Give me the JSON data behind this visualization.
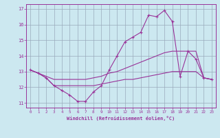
{
  "xlabel": "Windchill (Refroidissement éolien,°C)",
  "background_color": "#cce8f0",
  "line_color": "#993399",
  "grid_color": "#99aabb",
  "hours": [
    0,
    1,
    2,
    3,
    4,
    5,
    6,
    7,
    8,
    9,
    10,
    11,
    12,
    13,
    14,
    15,
    16,
    17,
    18,
    19,
    20,
    21,
    22,
    23
  ],
  "series1": [
    13.1,
    12.9,
    12.6,
    12.1,
    11.8,
    11.5,
    11.1,
    11.1,
    11.7,
    12.1,
    13.1,
    14.0,
    14.9,
    15.2,
    15.5,
    16.6,
    16.5,
    16.9,
    16.2,
    12.7,
    14.3,
    13.8,
    12.6,
    12.5
  ],
  "series2": [
    13.1,
    12.9,
    12.7,
    12.5,
    12.5,
    12.5,
    12.5,
    12.5,
    12.6,
    12.7,
    12.9,
    13.0,
    13.2,
    13.4,
    13.6,
    13.8,
    14.0,
    14.2,
    14.3,
    14.3,
    14.3,
    14.3,
    12.6,
    12.5
  ],
  "series3": [
    13.1,
    12.9,
    12.6,
    12.1,
    12.1,
    12.1,
    12.1,
    12.1,
    12.1,
    12.2,
    12.3,
    12.4,
    12.5,
    12.5,
    12.6,
    12.7,
    12.8,
    12.9,
    13.0,
    13.0,
    13.0,
    13.0,
    12.6,
    12.5
  ],
  "ylim": [
    10.7,
    17.3
  ],
  "yticks": [
    11,
    12,
    13,
    14,
    15,
    16,
    17
  ],
  "xlim": [
    -0.5,
    23.5
  ],
  "xticks": [
    0,
    1,
    2,
    3,
    4,
    5,
    6,
    7,
    8,
    9,
    10,
    11,
    12,
    13,
    14,
    15,
    16,
    17,
    18,
    19,
    20,
    21,
    22,
    23
  ]
}
